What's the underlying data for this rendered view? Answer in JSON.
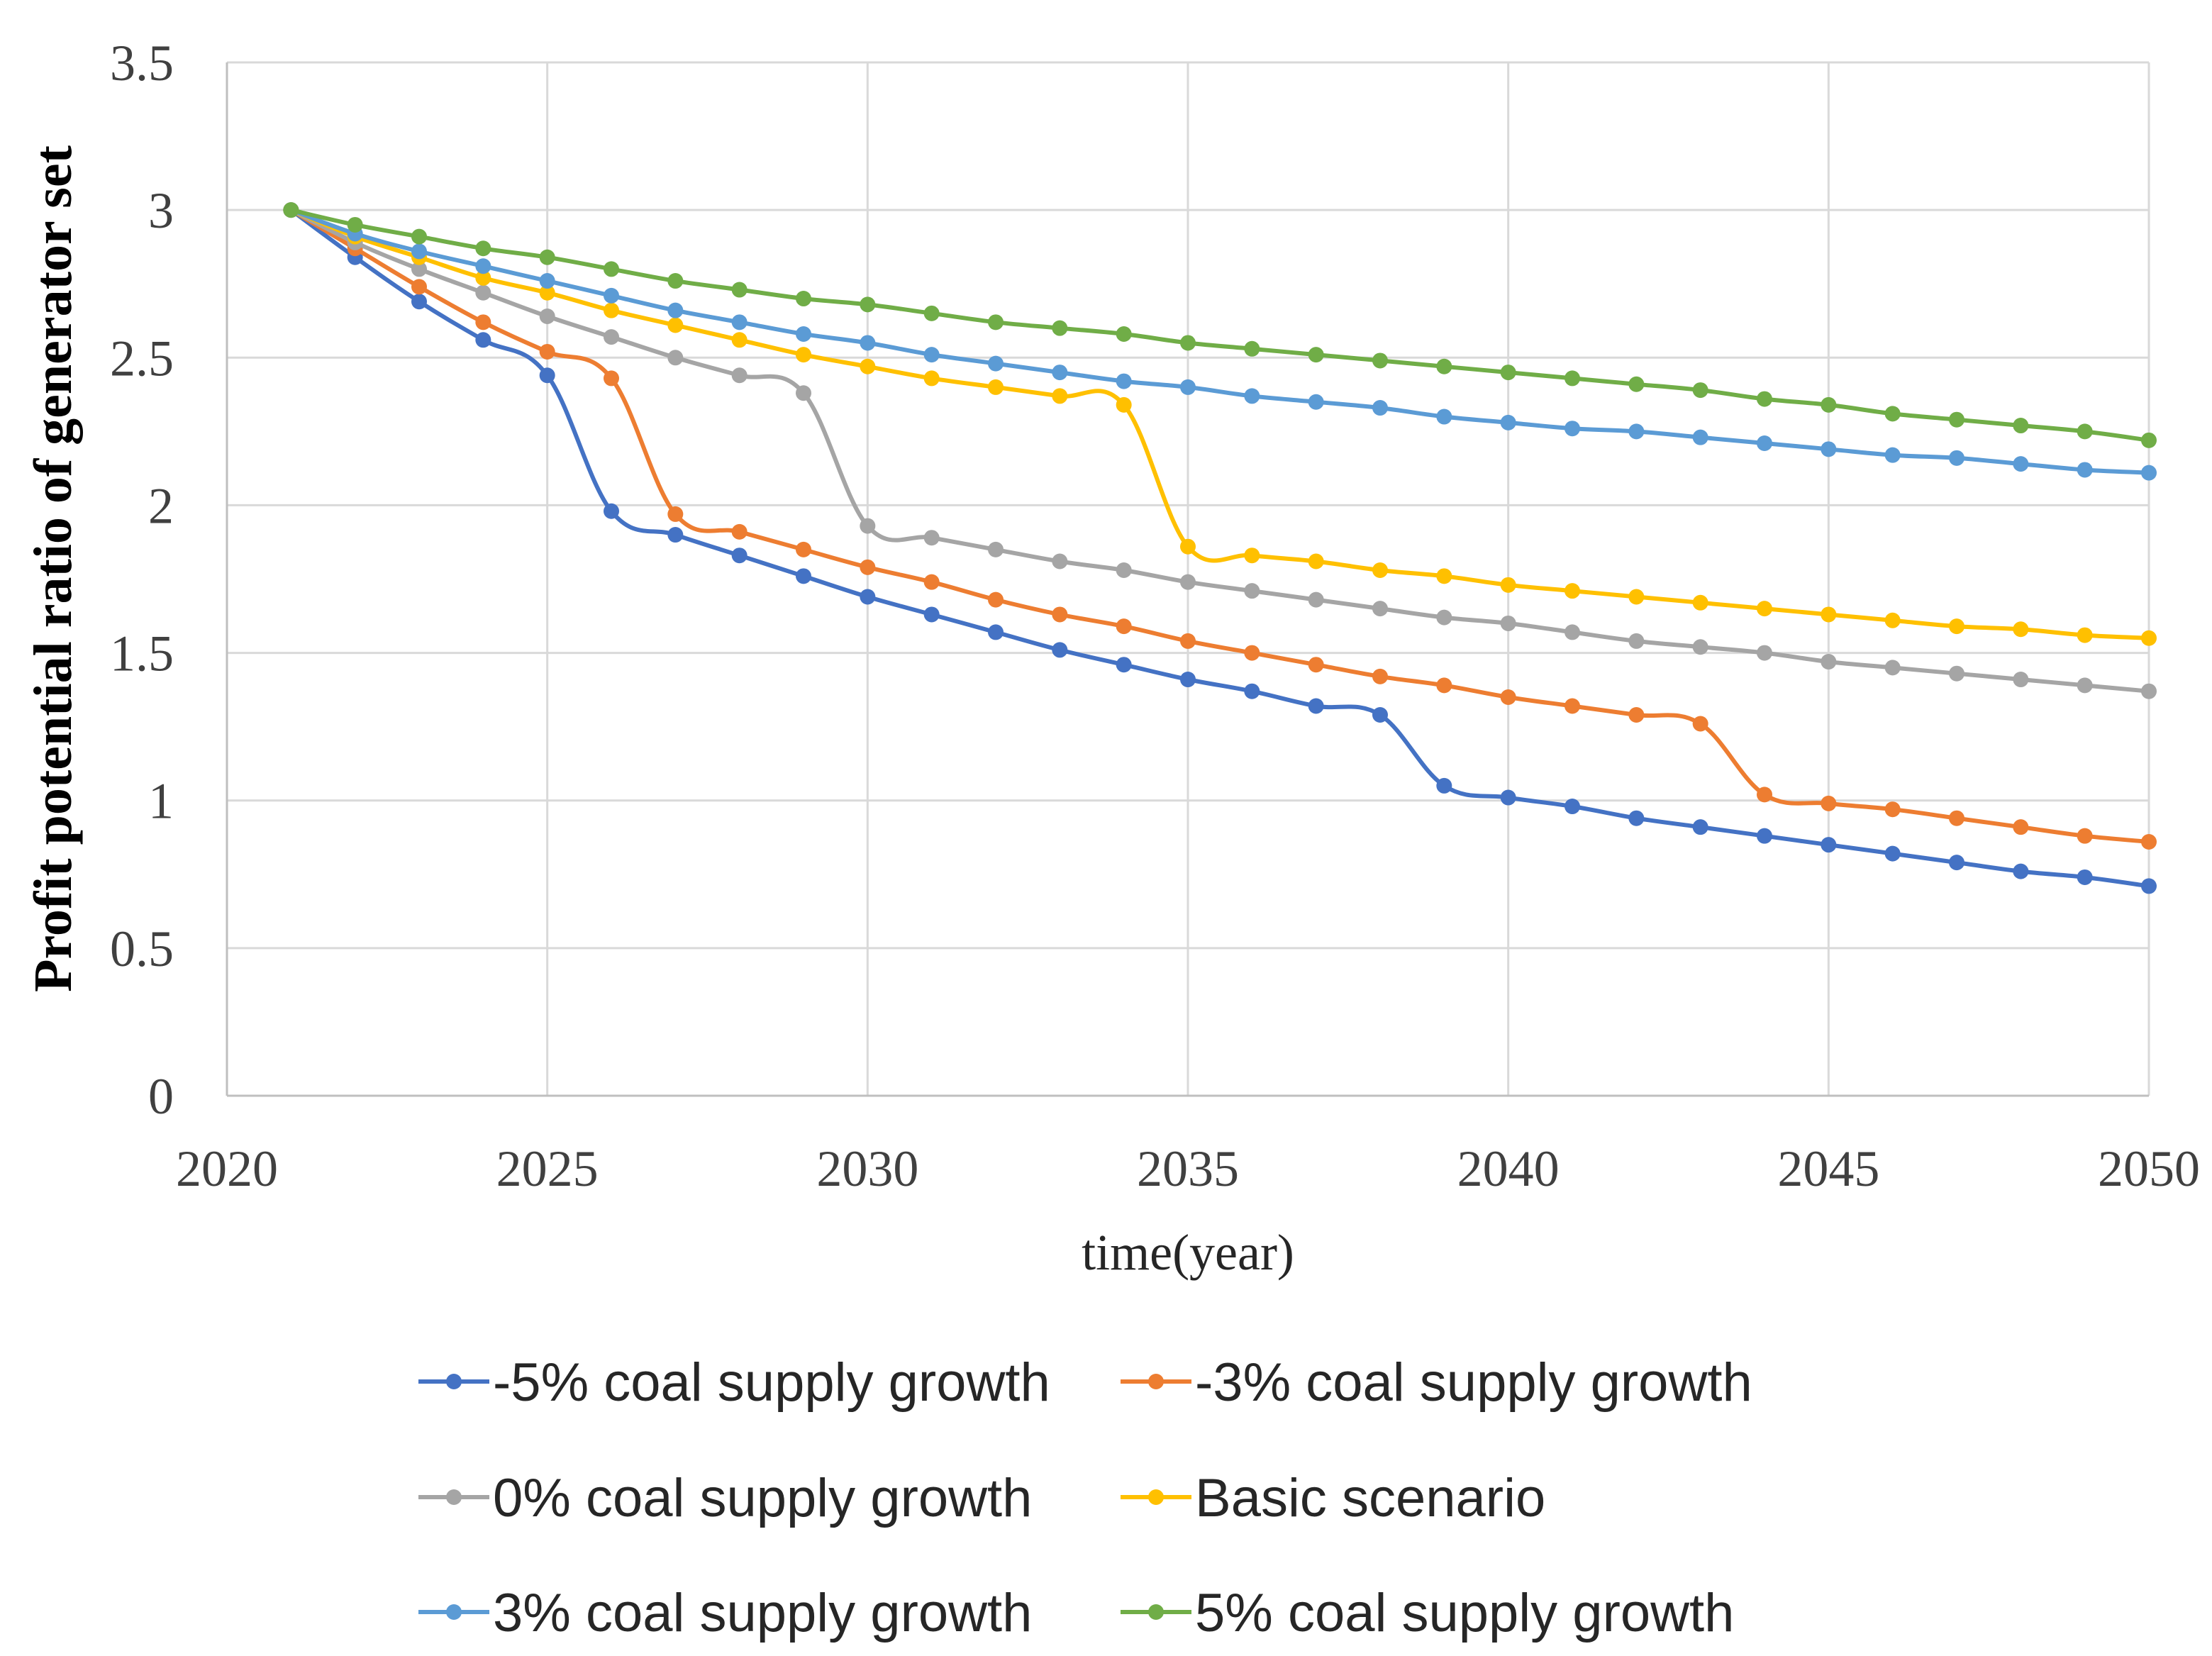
{
  "chart_data": {
    "type": "line",
    "title": "",
    "xlabel": "time(year)",
    "ylabel": "Profit potential ratio of generator set",
    "xlim": [
      2020,
      2050
    ],
    "ylim": [
      0,
      3.5
    ],
    "x_ticks": [
      2020,
      2025,
      2030,
      2035,
      2040,
      2045,
      2050
    ],
    "y_ticks": [
      0,
      0.5,
      1,
      1.5,
      2,
      2.5,
      3,
      3.5
    ],
    "x_tick_labels": [
      "2020",
      "2025",
      "2030",
      "2035",
      "2040",
      "2045",
      "2050"
    ],
    "y_tick_labels": [
      "0",
      "0.5",
      "1",
      "1.5",
      "2",
      "2.5",
      "3",
      "3.5"
    ],
    "grid": true,
    "legend_position": "bottom",
    "x": [
      2021,
      2022,
      2023,
      2024,
      2025,
      2026,
      2027,
      2028,
      2029,
      2030,
      2031,
      2032,
      2033,
      2034,
      2035,
      2036,
      2037,
      2038,
      2039,
      2040,
      2041,
      2042,
      2043,
      2044,
      2045,
      2046,
      2047,
      2048,
      2049,
      2050
    ],
    "series": [
      {
        "name": "-5% coal supply growth",
        "color": "#4472C4",
        "values": [
          3.0,
          2.84,
          2.69,
          2.56,
          2.44,
          1.98,
          1.9,
          1.83,
          1.76,
          1.69,
          1.63,
          1.57,
          1.51,
          1.46,
          1.41,
          1.37,
          1.32,
          1.29,
          1.05,
          1.01,
          0.98,
          0.94,
          0.91,
          0.88,
          0.85,
          0.82,
          0.79,
          0.76,
          0.74,
          0.71
        ]
      },
      {
        "name": "-3% coal supply growth",
        "color": "#ED7D31",
        "values": [
          3.0,
          2.87,
          2.74,
          2.62,
          2.52,
          2.43,
          1.97,
          1.91,
          1.85,
          1.79,
          1.74,
          1.68,
          1.63,
          1.59,
          1.54,
          1.5,
          1.46,
          1.42,
          1.39,
          1.35,
          1.32,
          1.29,
          1.26,
          1.02,
          0.99,
          0.97,
          0.94,
          0.91,
          0.88,
          0.86
        ]
      },
      {
        "name": "0% coal supply growth",
        "color": "#A5A5A5",
        "values": [
          3.0,
          2.89,
          2.8,
          2.72,
          2.64,
          2.57,
          2.5,
          2.44,
          2.38,
          1.93,
          1.89,
          1.85,
          1.81,
          1.78,
          1.74,
          1.71,
          1.68,
          1.65,
          1.62,
          1.6,
          1.57,
          1.54,
          1.52,
          1.5,
          1.47,
          1.45,
          1.43,
          1.41,
          1.39,
          1.37
        ]
      },
      {
        "name": "Basic scenario",
        "color": "#FFC000",
        "values": [
          3.0,
          2.91,
          2.84,
          2.77,
          2.72,
          2.66,
          2.61,
          2.56,
          2.51,
          2.47,
          2.43,
          2.4,
          2.37,
          2.34,
          1.86,
          1.83,
          1.81,
          1.78,
          1.76,
          1.73,
          1.71,
          1.69,
          1.67,
          1.65,
          1.63,
          1.61,
          1.59,
          1.58,
          1.56,
          1.55
        ]
      },
      {
        "name": "3% coal supply growth",
        "color": "#5B9BD5",
        "values": [
          3.0,
          2.92,
          2.86,
          2.81,
          2.76,
          2.71,
          2.66,
          2.62,
          2.58,
          2.55,
          2.51,
          2.48,
          2.45,
          2.42,
          2.4,
          2.37,
          2.35,
          2.33,
          2.3,
          2.28,
          2.26,
          2.25,
          2.23,
          2.21,
          2.19,
          2.17,
          2.16,
          2.14,
          2.12,
          2.11
        ]
      },
      {
        "name": "5% coal supply growth",
        "color": "#70AD47",
        "values": [
          3.0,
          2.95,
          2.91,
          2.87,
          2.84,
          2.8,
          2.76,
          2.73,
          2.7,
          2.68,
          2.65,
          2.62,
          2.6,
          2.58,
          2.55,
          2.53,
          2.51,
          2.49,
          2.47,
          2.45,
          2.43,
          2.41,
          2.39,
          2.36,
          2.34,
          2.31,
          2.29,
          2.27,
          2.25,
          2.22
        ]
      }
    ]
  }
}
